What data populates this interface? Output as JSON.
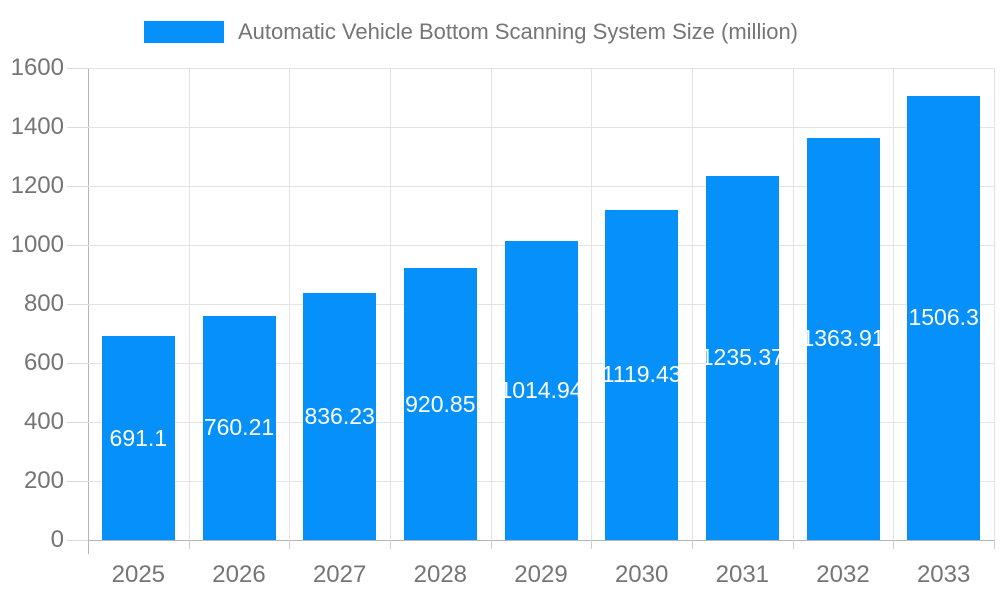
{
  "chart_data": {
    "type": "bar",
    "title": "Automatic Vehicle Bottom Scanning System Size (million)",
    "categories": [
      "2025",
      "2026",
      "2027",
      "2028",
      "2029",
      "2030",
      "2031",
      "2032",
      "2033"
    ],
    "series": [
      {
        "name": "Automatic Vehicle Bottom Scanning System Size (million)",
        "values": [
          691.1,
          760.21,
          836.23,
          920.85,
          1014.94,
          1119.43,
          1235.37,
          1363.91,
          1506.3
        ]
      }
    ],
    "value_labels": [
      "691.1",
      "760.21",
      "836.23",
      "920.85",
      "1014.94",
      "1119.43",
      "1235.37",
      "1363.91",
      "1506.3"
    ],
    "xlabel": "",
    "ylabel": "",
    "ylim": [
      0,
      1600
    ],
    "ytick_step": 200,
    "ytick_labels": [
      "0",
      "200",
      "400",
      "600",
      "800",
      "1000",
      "1200",
      "1400",
      "1600"
    ],
    "grid": true,
    "legend_position": "top",
    "value_label_position": "inside-middle",
    "colors": {
      "bar": "#0690fa",
      "bar_value_text": "#ffffff",
      "axis_text": "#757575",
      "legend_text": "#757575",
      "gridline": "#e3e3e3",
      "axis_line": "#b5b5b5",
      "background": "#ffffff"
    }
  }
}
